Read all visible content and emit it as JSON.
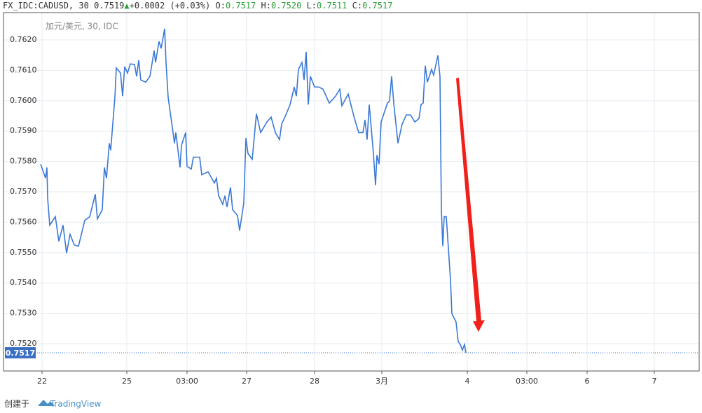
{
  "header": {
    "symbol": "FX_IDC:CADUSD, 30",
    "price": "0.7519",
    "change": "+0.0002 (+0.03%)",
    "o_label": "O:",
    "o": "0.7517",
    "h_label": "H:",
    "h": "0.7520",
    "l_label": "L:",
    "l": "0.7511",
    "c_label": "C:",
    "c": "0.7517"
  },
  "footer": {
    "created": "创建于",
    "brand": "TradingView"
  },
  "chart_data": {
    "type": "line",
    "watermark": "加元/美元, 30, IDC",
    "x": [
      58,
      65,
      67,
      68,
      71,
      79,
      84,
      90,
      95,
      100,
      106,
      112,
      115,
      121,
      128,
      136,
      139,
      146,
      149,
      152,
      156,
      158,
      164,
      166,
      172,
      175,
      178,
      182,
      186,
      192,
      195,
      198,
      201,
      208,
      214,
      220,
      222,
      227,
      230,
      235,
      237,
      240,
      247,
      249,
      251,
      257,
      259,
      265,
      267,
      273,
      276,
      285,
      288,
      297,
      306,
      309,
      312,
      318,
      321,
      324,
      329,
      332,
      339,
      342,
      348,
      351,
      354,
      360,
      366,
      372,
      381,
      387,
      393,
      399,
      402,
      408,
      414,
      420,
      423,
      426,
      431,
      434,
      437,
      440,
      443,
      449,
      455,
      461,
      470,
      479,
      485,
      488,
      497,
      506,
      512,
      518,
      521,
      524,
      527,
      533,
      536,
      538,
      541,
      544,
      553,
      556,
      559,
      562,
      568,
      574,
      580,
      586,
      592,
      598,
      601,
      604,
      607,
      610,
      616,
      619,
      625,
      628,
      630,
      632,
      634,
      637,
      643,
      645,
      651,
      654,
      657,
      660,
      663,
      665
    ],
    "series": [
      {
        "name": "CADUSD",
        "color": "#3a78d6",
        "values": [
          0.75791,
          0.75745,
          0.7578,
          0.7568,
          0.7559,
          0.75618,
          0.75537,
          0.7559,
          0.75498,
          0.7556,
          0.75525,
          0.75521,
          0.75549,
          0.75606,
          0.75618,
          0.75692,
          0.75611,
          0.75641,
          0.7578,
          0.75745,
          0.7586,
          0.75837,
          0.76011,
          0.76108,
          0.76091,
          0.76015,
          0.76112,
          0.76091,
          0.76121,
          0.76119,
          0.7608,
          0.76133,
          0.76068,
          0.76061,
          0.7608,
          0.76165,
          0.76126,
          0.76195,
          0.76172,
          0.76237,
          0.76126,
          0.76011,
          0.75895,
          0.7586,
          0.75895,
          0.7578,
          0.75853,
          0.75895,
          0.75784,
          0.75775,
          0.75814,
          0.75814,
          0.75756,
          0.75766,
          0.75729,
          0.75745,
          0.75687,
          0.75659,
          0.75687,
          0.7565,
          0.75715,
          0.75641,
          0.75622,
          0.75572,
          0.75664,
          0.75877,
          0.75826,
          0.75807,
          0.75957,
          0.75895,
          0.7593,
          0.75946,
          0.75895,
          0.75872,
          0.75923,
          0.75953,
          0.75987,
          0.76045,
          0.76015,
          0.76103,
          0.76126,
          0.76068,
          0.76161,
          0.75987,
          0.7608,
          0.76045,
          0.76045,
          0.76038,
          0.75992,
          0.76015,
          0.76038,
          0.75983,
          0.76022,
          0.75941,
          0.75895,
          0.75895,
          0.75937,
          0.75872,
          0.75987,
          0.75826,
          0.75722,
          0.75821,
          0.75791,
          0.7593,
          0.75992,
          0.75999,
          0.7608,
          0.75992,
          0.7586,
          0.75923,
          0.75953,
          0.75953,
          0.7593,
          0.75941,
          0.75987,
          0.75992,
          0.76115,
          0.76061,
          0.76103,
          0.76084,
          0.76149,
          0.7608,
          0.75641,
          0.75521,
          0.75618,
          0.75618,
          0.7541,
          0.75299,
          0.75271,
          0.75207,
          0.75197,
          0.75179,
          0.75197,
          0.7517
        ]
      }
    ],
    "last_value": {
      "value": 0.7517,
      "label": "0.7517"
    },
    "xlim": [
      5,
      998
    ],
    "ylim": [
      0.7511,
      0.7629
    ],
    "grid": true,
    "xticks": [
      {
        "value": 60,
        "label": "22"
      },
      {
        "value": 181,
        "label": "25"
      },
      {
        "value": 267,
        "label": "03:00"
      },
      {
        "value": 352,
        "label": "27"
      },
      {
        "value": 449,
        "label": "28"
      },
      {
        "value": 545,
        "label": "3月"
      },
      {
        "value": 667,
        "label": "4"
      },
      {
        "value": 752,
        "label": "03:00"
      },
      {
        "value": 838,
        "label": "6"
      },
      {
        "value": 934,
        "label": "7"
      }
    ],
    "yticks": [
      {
        "value": 0.752,
        "label": "0.7520"
      },
      {
        "value": 0.753,
        "label": "0.7530"
      },
      {
        "value": 0.754,
        "label": "0.7540"
      },
      {
        "value": 0.755,
        "label": "0.7550"
      },
      {
        "value": 0.756,
        "label": "0.7560"
      },
      {
        "value": 0.757,
        "label": "0.7570"
      },
      {
        "value": 0.758,
        "label": "0.7580"
      },
      {
        "value": 0.759,
        "label": "0.7590"
      },
      {
        "value": 0.76,
        "label": "0.7600"
      },
      {
        "value": 0.761,
        "label": "0.7610"
      },
      {
        "value": 0.762,
        "label": "0.7620"
      }
    ]
  }
}
